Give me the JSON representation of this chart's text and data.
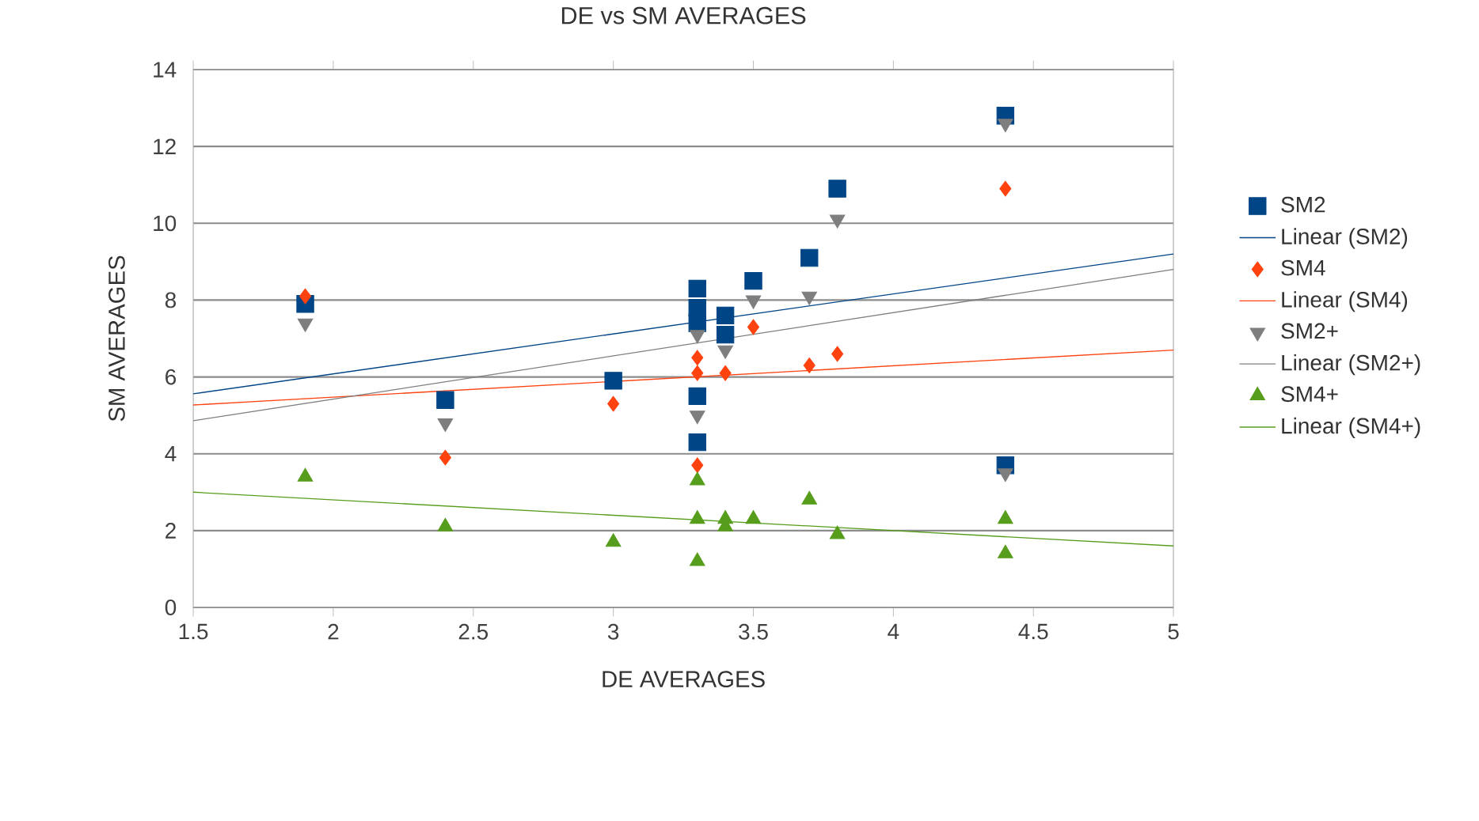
{
  "chart_data": {
    "type": "scatter",
    "title": "DE vs SM AVERAGES",
    "xlabel": "DE  AVERAGES",
    "ylabel": "SM  AVERAGES",
    "xlim": [
      1.5,
      5
    ],
    "xticks": [
      {
        "value": 1.5,
        "label": "1.5"
      },
      2,
      {
        "value": 2.5,
        "label": "2.5"
      },
      3,
      {
        "value": 3.5,
        "label": "3.5"
      },
      4,
      {
        "value": 4.5,
        "label": "4.5"
      },
      5
    ],
    "ylim": [
      0,
      14
    ],
    "yticks": [
      0,
      2,
      4,
      6,
      8,
      10,
      12,
      14
    ],
    "grid": "y",
    "legend": "right",
    "series": [
      {
        "name": "SM2",
        "color": "#004586",
        "marker": "square",
        "x": [
          1.9,
          2.4,
          3.0,
          3.3,
          3.3,
          3.3,
          3.3,
          3.3,
          3.4,
          3.4,
          3.5,
          3.7,
          3.8,
          4.4,
          4.4
        ],
        "values": [
          7.9,
          5.4,
          5.9,
          8.3,
          7.8,
          7.4,
          5.5,
          4.3,
          7.6,
          7.1,
          8.5,
          9.1,
          10.9,
          12.8,
          3.7
        ]
      },
      {
        "name": "Linear (SM2)",
        "type": "line",
        "color": "#004586",
        "x": [
          1.5,
          5
        ],
        "values": [
          5.56,
          9.2
        ]
      },
      {
        "name": "SM4",
        "color": "#ff420e",
        "marker": "diamond",
        "x": [
          1.9,
          2.4,
          3.0,
          3.3,
          3.3,
          3.3,
          3.4,
          3.5,
          3.7,
          3.8,
          4.4
        ],
        "values": [
          8.1,
          3.9,
          5.3,
          6.5,
          6.1,
          3.7,
          6.1,
          7.3,
          6.3,
          6.6,
          10.9
        ]
      },
      {
        "name": "Linear (SM4)",
        "type": "line",
        "color": "#ff420e",
        "x": [
          1.5,
          5
        ],
        "values": [
          5.27,
          6.7
        ]
      },
      {
        "name": "SM2+",
        "color": "#7e7e7e",
        "marker": "triangle-down",
        "x": [
          1.9,
          2.4,
          3.3,
          3.3,
          3.4,
          3.5,
          3.7,
          3.8,
          4.4,
          4.4
        ],
        "values": [
          7.4,
          4.8,
          7.1,
          5.0,
          6.7,
          8.0,
          8.1,
          10.1,
          12.6,
          3.5
        ]
      },
      {
        "name": "Linear (SM2+)",
        "type": "line",
        "color": "#7e7e7e",
        "x": [
          1.5,
          5
        ],
        "values": [
          4.86,
          8.8
        ]
      },
      {
        "name": "SM4+",
        "color": "#579d1c",
        "marker": "triangle",
        "x": [
          1.9,
          2.4,
          3.0,
          3.3,
          3.3,
          3.3,
          3.4,
          3.4,
          3.5,
          3.7,
          3.8,
          4.4,
          4.4
        ],
        "values": [
          3.4,
          2.1,
          1.7,
          3.3,
          2.3,
          1.2,
          2.3,
          2.1,
          2.3,
          2.8,
          1.9,
          2.3,
          1.4
        ]
      },
      {
        "name": "Linear (SM4+)",
        "type": "line",
        "color": "#579d1c",
        "x": [
          1.5,
          5
        ],
        "values": [
          3.0,
          1.6
        ]
      }
    ]
  }
}
